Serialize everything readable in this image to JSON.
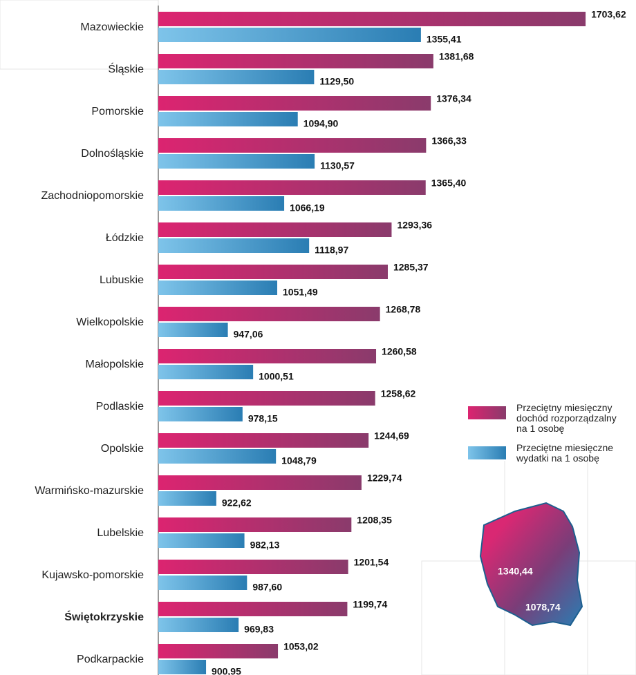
{
  "chart_data": {
    "type": "bar",
    "categories": [
      "Mazowieckie",
      "Śląskie",
      "Pomorskie",
      "Dolnośląskie",
      "Zachodniopomorskie",
      "Łódzkie",
      "Lubuskie",
      "Wielkopolskie",
      "Małopolskie",
      "Podlaskie",
      "Opolskie",
      "Warmińsko-mazurskie",
      "Lubelskie",
      "Kujawsko-pomorskie",
      "Świętokrzyskie",
      "Podkarpackie"
    ],
    "highlight_index": 14,
    "series": [
      {
        "name": "Przeciętny miesięczny dochód rozporządzalny na 1 osobę",
        "color": [
          "#dc2470",
          "#8a3b6c"
        ],
        "values": [
          1703.62,
          1381.68,
          1376.34,
          1366.33,
          1365.4,
          1293.36,
          1285.37,
          1268.78,
          1260.58,
          1258.62,
          1244.69,
          1229.74,
          1208.35,
          1201.54,
          1199.74,
          1053.02
        ],
        "value_labels": [
          "1703,62",
          "1381,68",
          "1376,34",
          "1366,33",
          "1365,40",
          "1293,36",
          "1285,37",
          "1268,78",
          "1260,58",
          "1258,62",
          "1244,69",
          "1229,74",
          "1208,35",
          "1201,54",
          "1199,74",
          "1053,02"
        ]
      },
      {
        "name": "Przeciętne miesięczne wydatki na 1 osobę",
        "color": [
          "#7ec4ea",
          "#2a7db3"
        ],
        "values": [
          1355.41,
          1129.5,
          1094.9,
          1130.57,
          1066.19,
          1118.97,
          1051.49,
          947.06,
          1000.51,
          978.15,
          1048.79,
          922.62,
          982.13,
          987.6,
          969.83,
          900.95
        ],
        "value_labels": [
          "1355,41",
          "1129,50",
          "1094,90",
          "1130,57",
          "1066,19",
          "1118,97",
          "1051,49",
          "947,06",
          "1000,51",
          "978,15",
          "1048,79",
          "922,62",
          "982,13",
          "987,60",
          "969,83",
          "900,95"
        ]
      }
    ],
    "xlim": [
      800,
      1800
    ],
    "annotations": [
      "1340,44",
      "1078,74"
    ]
  }
}
